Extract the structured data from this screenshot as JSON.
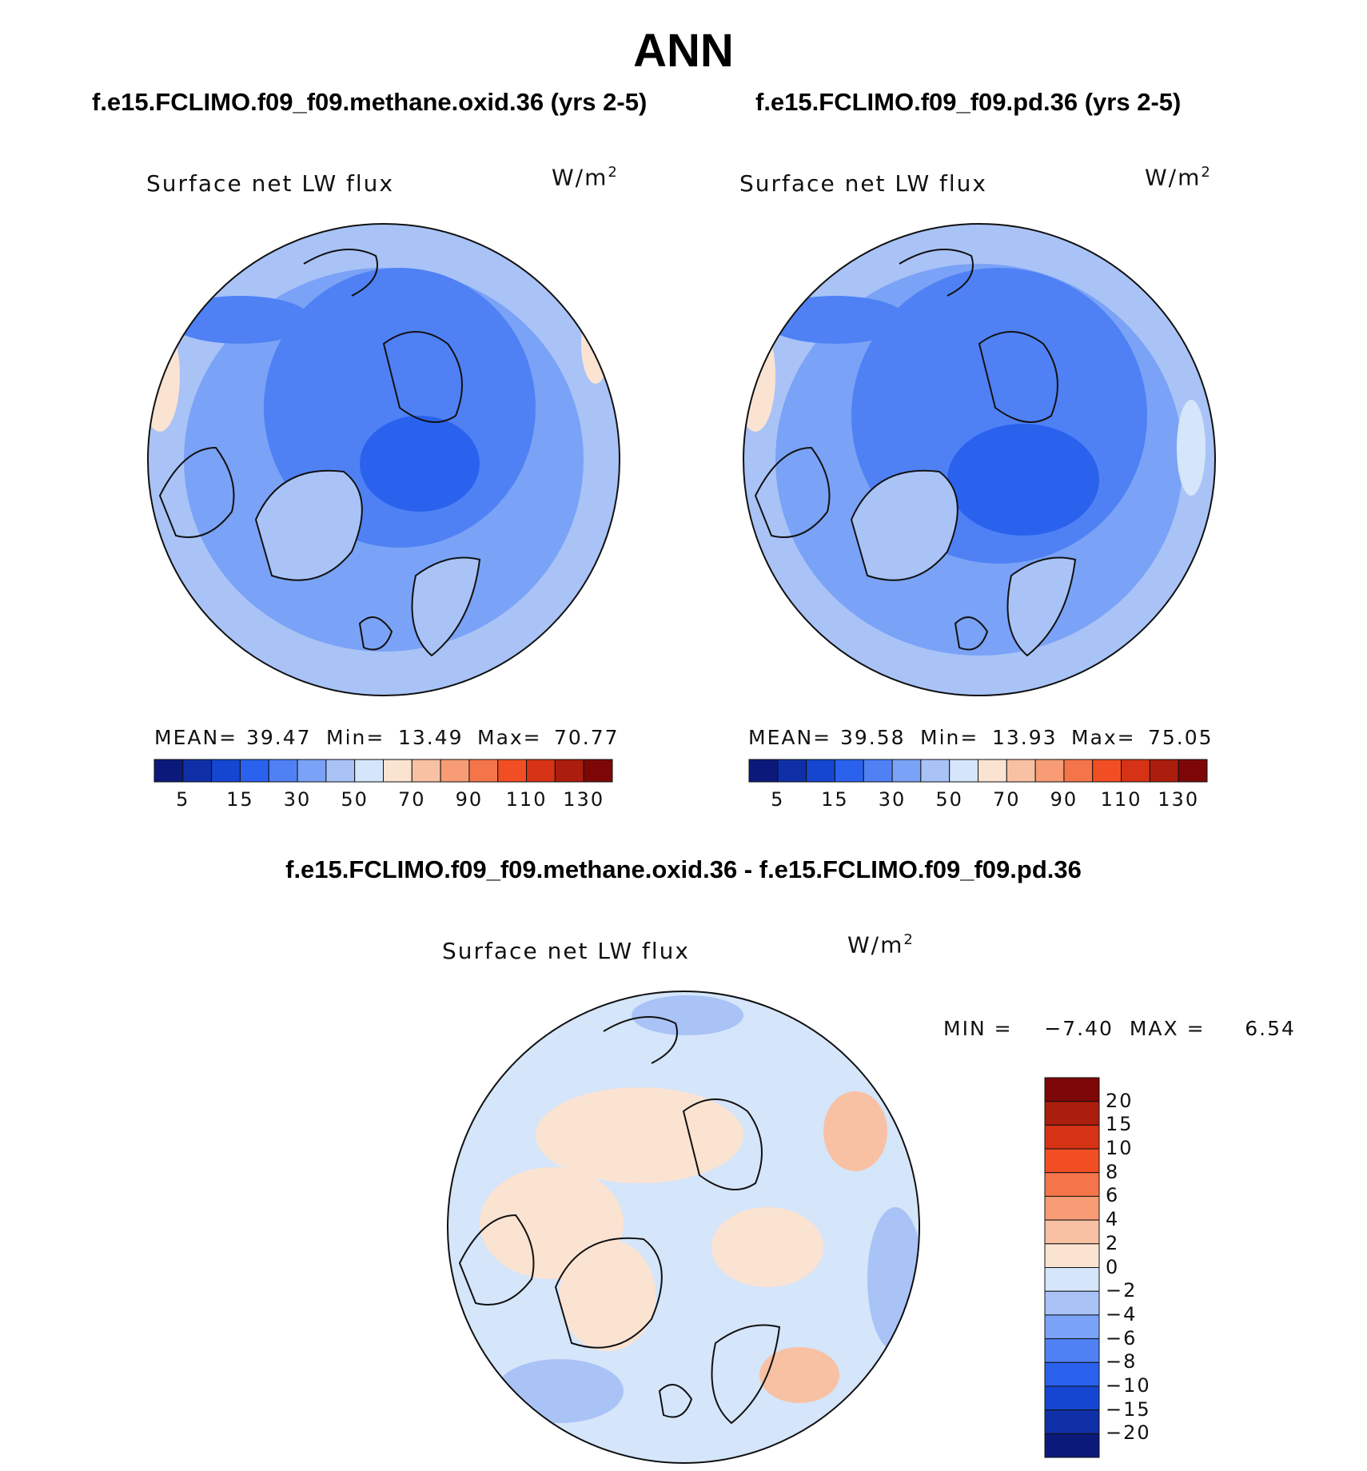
{
  "title": "ANN",
  "unit_label": "W/m",
  "unit_sup": "2",
  "panels": [
    {
      "case_title": "f.e15.FCLIMO.f09_f09.methane.oxid.36 (yrs 2-5)",
      "variable_label": "Surface net LW flux",
      "stats": {
        "mean_label": "MEAN=",
        "mean": "39.47",
        "min_label": "Min=",
        "min": "13.49",
        "max_label": "Max=",
        "max": "70.77"
      }
    },
    {
      "case_title": "f.e15.FCLIMO.f09_f09.pd.36 (yrs 2-5)",
      "variable_label": "Surface net LW flux",
      "stats": {
        "mean_label": "MEAN=",
        "mean": "39.58",
        "min_label": "Min=",
        "min": "13.93",
        "max_label": "Max=",
        "max": "75.05"
      }
    }
  ],
  "diff_panel": {
    "title": "f.e15.FCLIMO.f09_f09.methane.oxid.36 - f.e15.FCLIMO.f09_f09.pd.36",
    "variable_label": "Surface net LW flux",
    "minmax_text": "MIN =    −7.40  MAX =     6.54"
  },
  "chart_data": [
    {
      "type": "heatmap",
      "projection": "north polar stereographic",
      "title": "f.e15.FCLIMO.f09_f09.methane.oxid.36 (yrs 2-5)",
      "variable": "Surface net LW flux",
      "units": "W/m2",
      "mean": 39.47,
      "min": 13.49,
      "max": 70.77,
      "colorbar_levels": [
        5,
        10,
        15,
        20,
        30,
        40,
        50,
        60,
        70,
        80,
        90,
        100,
        110,
        120,
        130
      ],
      "colorbar_tick_labels": [
        "5",
        "15",
        "30",
        "50",
        "70",
        "90",
        "110",
        "130"
      ],
      "colorbar_colors": [
        "#0b1a7a",
        "#0f2fa6",
        "#1546d1",
        "#2a62ee",
        "#4f81f5",
        "#7aa2f6",
        "#a9c3f7",
        "#d5e5fa",
        "#fbe3d2",
        "#f8c1a4",
        "#f79c74",
        "#f5754a",
        "#f14e23",
        "#d63216",
        "#ab1d0c",
        "#7d0707"
      ]
    },
    {
      "type": "heatmap",
      "projection": "north polar stereographic",
      "title": "f.e15.FCLIMO.f09_f09.pd.36 (yrs 2-5)",
      "variable": "Surface net LW flux",
      "units": "W/m2",
      "mean": 39.58,
      "min": 13.93,
      "max": 75.05,
      "colorbar_levels": [
        5,
        10,
        15,
        20,
        30,
        40,
        50,
        60,
        70,
        80,
        90,
        100,
        110,
        120,
        130
      ],
      "colorbar_tick_labels": [
        "5",
        "15",
        "30",
        "50",
        "70",
        "90",
        "110",
        "130"
      ],
      "colorbar_colors": [
        "#0b1a7a",
        "#0f2fa6",
        "#1546d1",
        "#2a62ee",
        "#4f81f5",
        "#7aa2f6",
        "#a9c3f7",
        "#d5e5fa",
        "#fbe3d2",
        "#f8c1a4",
        "#f79c74",
        "#f5754a",
        "#f14e23",
        "#d63216",
        "#ab1d0c",
        "#7d0707"
      ]
    },
    {
      "type": "heatmap",
      "projection": "north polar stereographic",
      "title": "f.e15.FCLIMO.f09_f09.methane.oxid.36 - f.e15.FCLIMO.f09_f09.pd.36",
      "variable": "Surface net LW flux",
      "units": "W/m2",
      "min": -7.4,
      "max": 6.54,
      "colorbar_levels": [
        20,
        15,
        10,
        8,
        6,
        4,
        2,
        0,
        -2,
        -4,
        -6,
        -8,
        -10,
        -15,
        -20
      ],
      "colorbar_tick_labels": [
        "20",
        "15",
        "10",
        "8",
        "6",
        "4",
        "2",
        "0",
        "−2",
        "−4",
        "−6",
        "−8",
        "−10",
        "−15",
        "−20"
      ],
      "colorbar_colors": [
        "#7d0707",
        "#ab1d0c",
        "#d63216",
        "#f14e23",
        "#f5754a",
        "#f79c74",
        "#f8c1a4",
        "#fbe3d2",
        "#d5e5fa",
        "#a9c3f7",
        "#7aa2f6",
        "#4f81f5",
        "#2a62ee",
        "#1546d1",
        "#0f2fa6",
        "#0b1a7a"
      ]
    }
  ]
}
